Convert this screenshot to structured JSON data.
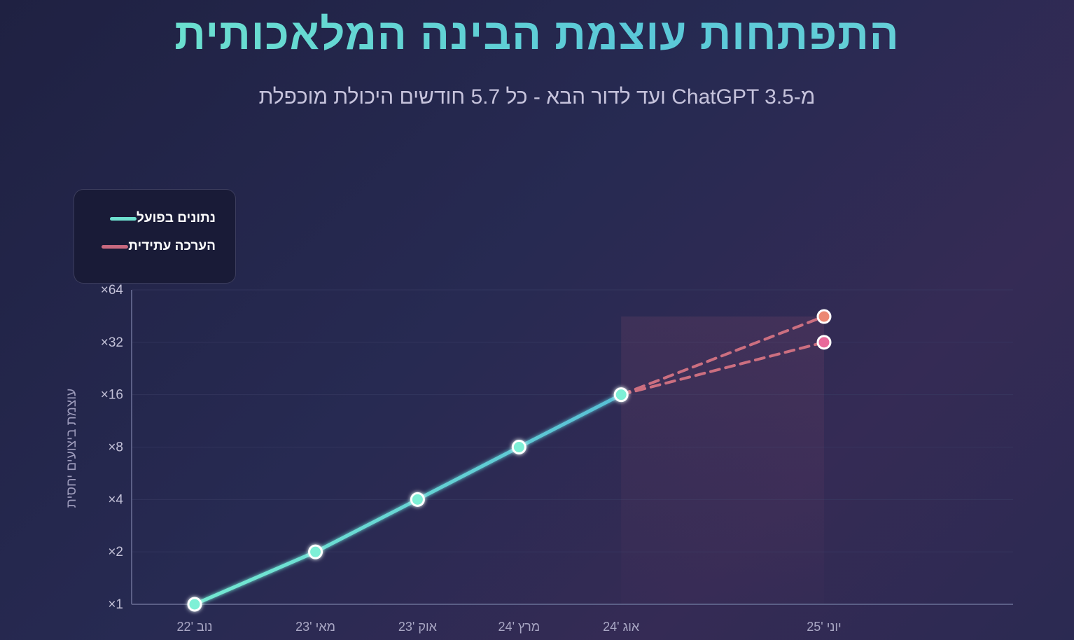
{
  "title": "התפתחות עוצמת הבינה המלאכותית",
  "subtitle": "מ-ChatGPT 3.5 ועד לדור הבא - כל 5.7 חודשים היכולת מוכפלת",
  "legend": {
    "placement": "top-left",
    "items": [
      {
        "label": "נתונים בפועל",
        "color": "#6ee0cf"
      },
      {
        "label": "הערכה עתידית",
        "color": "#c8697f"
      }
    ]
  },
  "colors": {
    "actual_start": "#74ead2",
    "actual_end": "#58bfd6",
    "forecast": "#cc6f80",
    "forecast_point_high": "#ec8873",
    "forecast_point_low": "#e8689a",
    "axis": "#5b5f86",
    "tick_text": "#c4c2d8",
    "grid": "#3b3e66"
  },
  "chart_data": {
    "type": "line",
    "ylabel": "עוצמת ביצועים יחסית",
    "xlabel": "",
    "yscale": "log2",
    "ylim": [
      1,
      64
    ],
    "yticks": [
      1,
      2,
      4,
      8,
      16,
      32,
      64
    ],
    "ytick_labels": [
      "×1",
      "×2",
      "×4",
      "×8",
      "×16",
      "×32",
      "×64"
    ],
    "x_dates": [
      "2022-11",
      "2023-05",
      "2023-10",
      "2024-03",
      "2024-08",
      "2025-06"
    ],
    "x_labels": [
      "נוב '22",
      "מאי '23",
      "אוק '23",
      "מרץ '24",
      "אוג '24",
      "יוני '25"
    ],
    "grid": true,
    "series": [
      {
        "name": "נתונים בפועל",
        "style": "solid",
        "points": [
          [
            "2022-11",
            1
          ],
          [
            "2023-05",
            2
          ],
          [
            "2023-10",
            4
          ],
          [
            "2024-03",
            8
          ],
          [
            "2024-08",
            16
          ]
        ]
      },
      {
        "name": "הערכה עתידית",
        "style": "dashed",
        "points": [
          [
            "2024-08",
            16
          ],
          [
            "2025-06",
            45
          ]
        ]
      },
      {
        "name": "הערכה עתידית",
        "style": "dashed",
        "points": [
          [
            "2024-08",
            16
          ],
          [
            "2025-06",
            32
          ]
        ]
      }
    ]
  }
}
